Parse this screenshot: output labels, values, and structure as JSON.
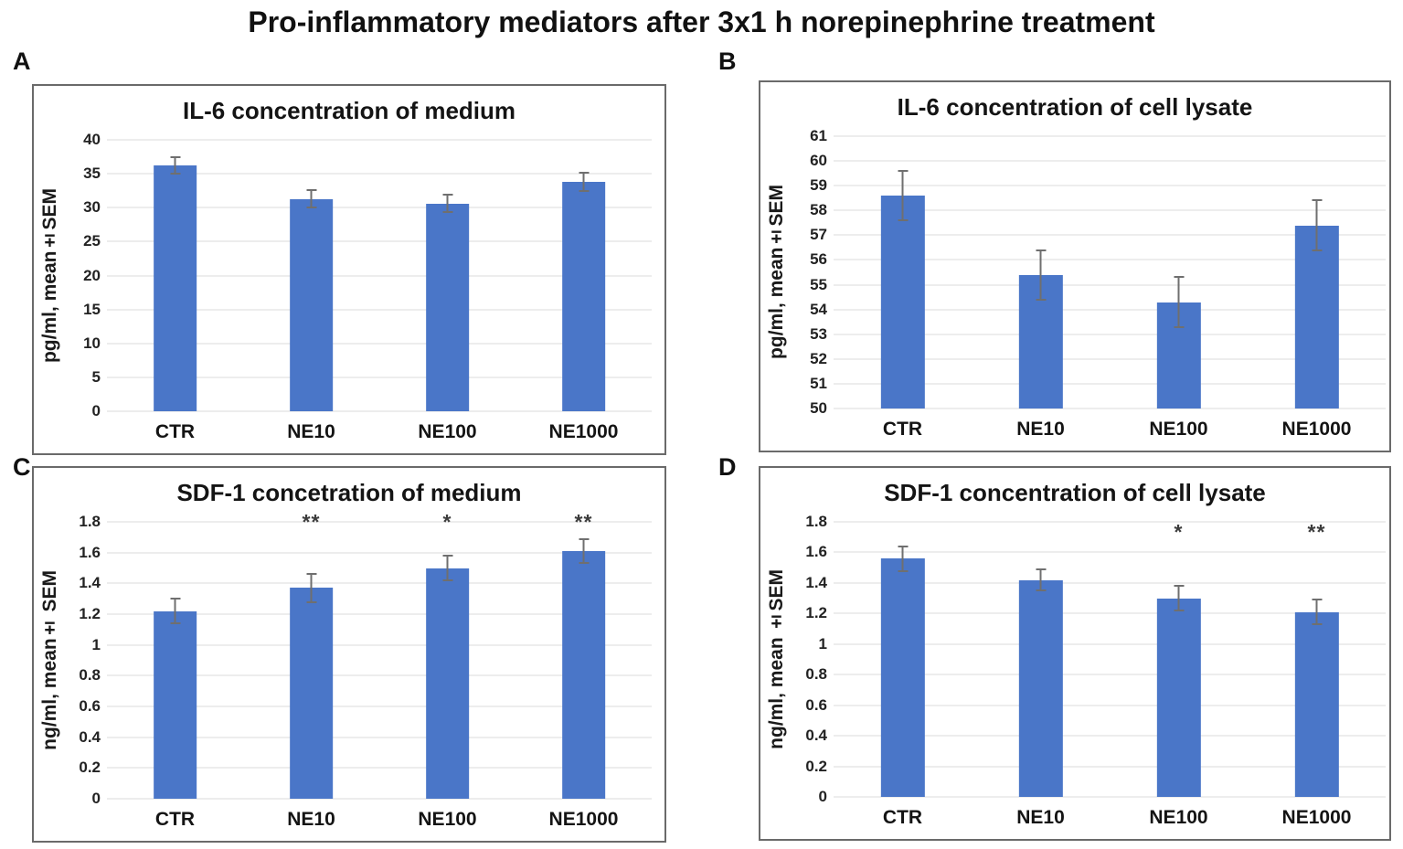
{
  "figure": {
    "title": "Pro-inflammatory mediators after 3x1 h norepinephrine treatment"
  },
  "style": {
    "bar_color": "#4A76C8",
    "grid_color": "#EDEDED",
    "error_color": "#6F6F6F"
  },
  "chart_data": [
    {
      "panel_label": "A",
      "type": "bar",
      "title": "IL-6 concentration of medium",
      "ylabel": "pg/ml, mean±SEM",
      "xlabel": "",
      "categories": [
        "CTR",
        "NE10",
        "NE100",
        "NE1000"
      ],
      "values": [
        36.2,
        31.3,
        30.6,
        33.8
      ],
      "errors": [
        1.2,
        1.3,
        1.3,
        1.3
      ],
      "significance": [
        "",
        "",
        "",
        ""
      ],
      "ylim": [
        0,
        40
      ],
      "yticks": [
        "40",
        "35",
        "30",
        "25",
        "20",
        "15",
        "10",
        "5",
        "0"
      ],
      "grid": true,
      "legend": false
    },
    {
      "panel_label": "B",
      "type": "bar",
      "title": "IL-6 concentration of cell lysate",
      "ylabel": "pg/ml, mean±SEM",
      "xlabel": "",
      "categories": [
        "CTR",
        "NE10",
        "NE100",
        "NE1000"
      ],
      "values": [
        58.6,
        55.4,
        54.3,
        57.4
      ],
      "errors": [
        1.0,
        1.0,
        1.0,
        1.0
      ],
      "significance": [
        "",
        "",
        "",
        ""
      ],
      "ylim": [
        50,
        61
      ],
      "yticks": [
        "61",
        "60",
        "59",
        "58",
        "57",
        "56",
        "55",
        "54",
        "53",
        "52",
        "51",
        "50"
      ],
      "grid": true,
      "legend": false
    },
    {
      "panel_label": "C",
      "type": "bar",
      "title": "SDF-1 concetration of medium",
      "ylabel": "ng/ml, mean± SEM",
      "xlabel": "",
      "categories": [
        "CTR",
        "NE10",
        "NE100",
        "NE1000"
      ],
      "values": [
        1.22,
        1.37,
        1.5,
        1.61
      ],
      "errors": [
        0.08,
        0.09,
        0.08,
        0.08
      ],
      "significance": [
        "",
        "**",
        "*",
        "**"
      ],
      "sig_level": 1.73,
      "ylim": [
        0,
        1.8
      ],
      "yticks": [
        "1.8",
        "1.6",
        "1.4",
        "1.2",
        "1",
        "0.8",
        "0.6",
        "0.4",
        "0.2",
        "0"
      ],
      "grid": true,
      "legend": false
    },
    {
      "panel_label": "D",
      "type": "bar",
      "title": "SDF-1 concentration of cell lysate",
      "ylabel": "ng/ml, mean ±SEM",
      "xlabel": "",
      "categories": [
        "CTR",
        "NE10",
        "NE100",
        "NE1000"
      ],
      "values": [
        1.56,
        1.42,
        1.3,
        1.21
      ],
      "errors": [
        0.08,
        0.07,
        0.08,
        0.08
      ],
      "significance": [
        "",
        "",
        "*",
        "**"
      ],
      "sig_level": 1.66,
      "ylim": [
        0,
        1.8
      ],
      "yticks": [
        "1.8",
        "1.6",
        "1.4",
        "1.2",
        "1",
        "0.8",
        "0.6",
        "0.4",
        "0.2",
        "0"
      ],
      "grid": true,
      "legend": false
    }
  ]
}
